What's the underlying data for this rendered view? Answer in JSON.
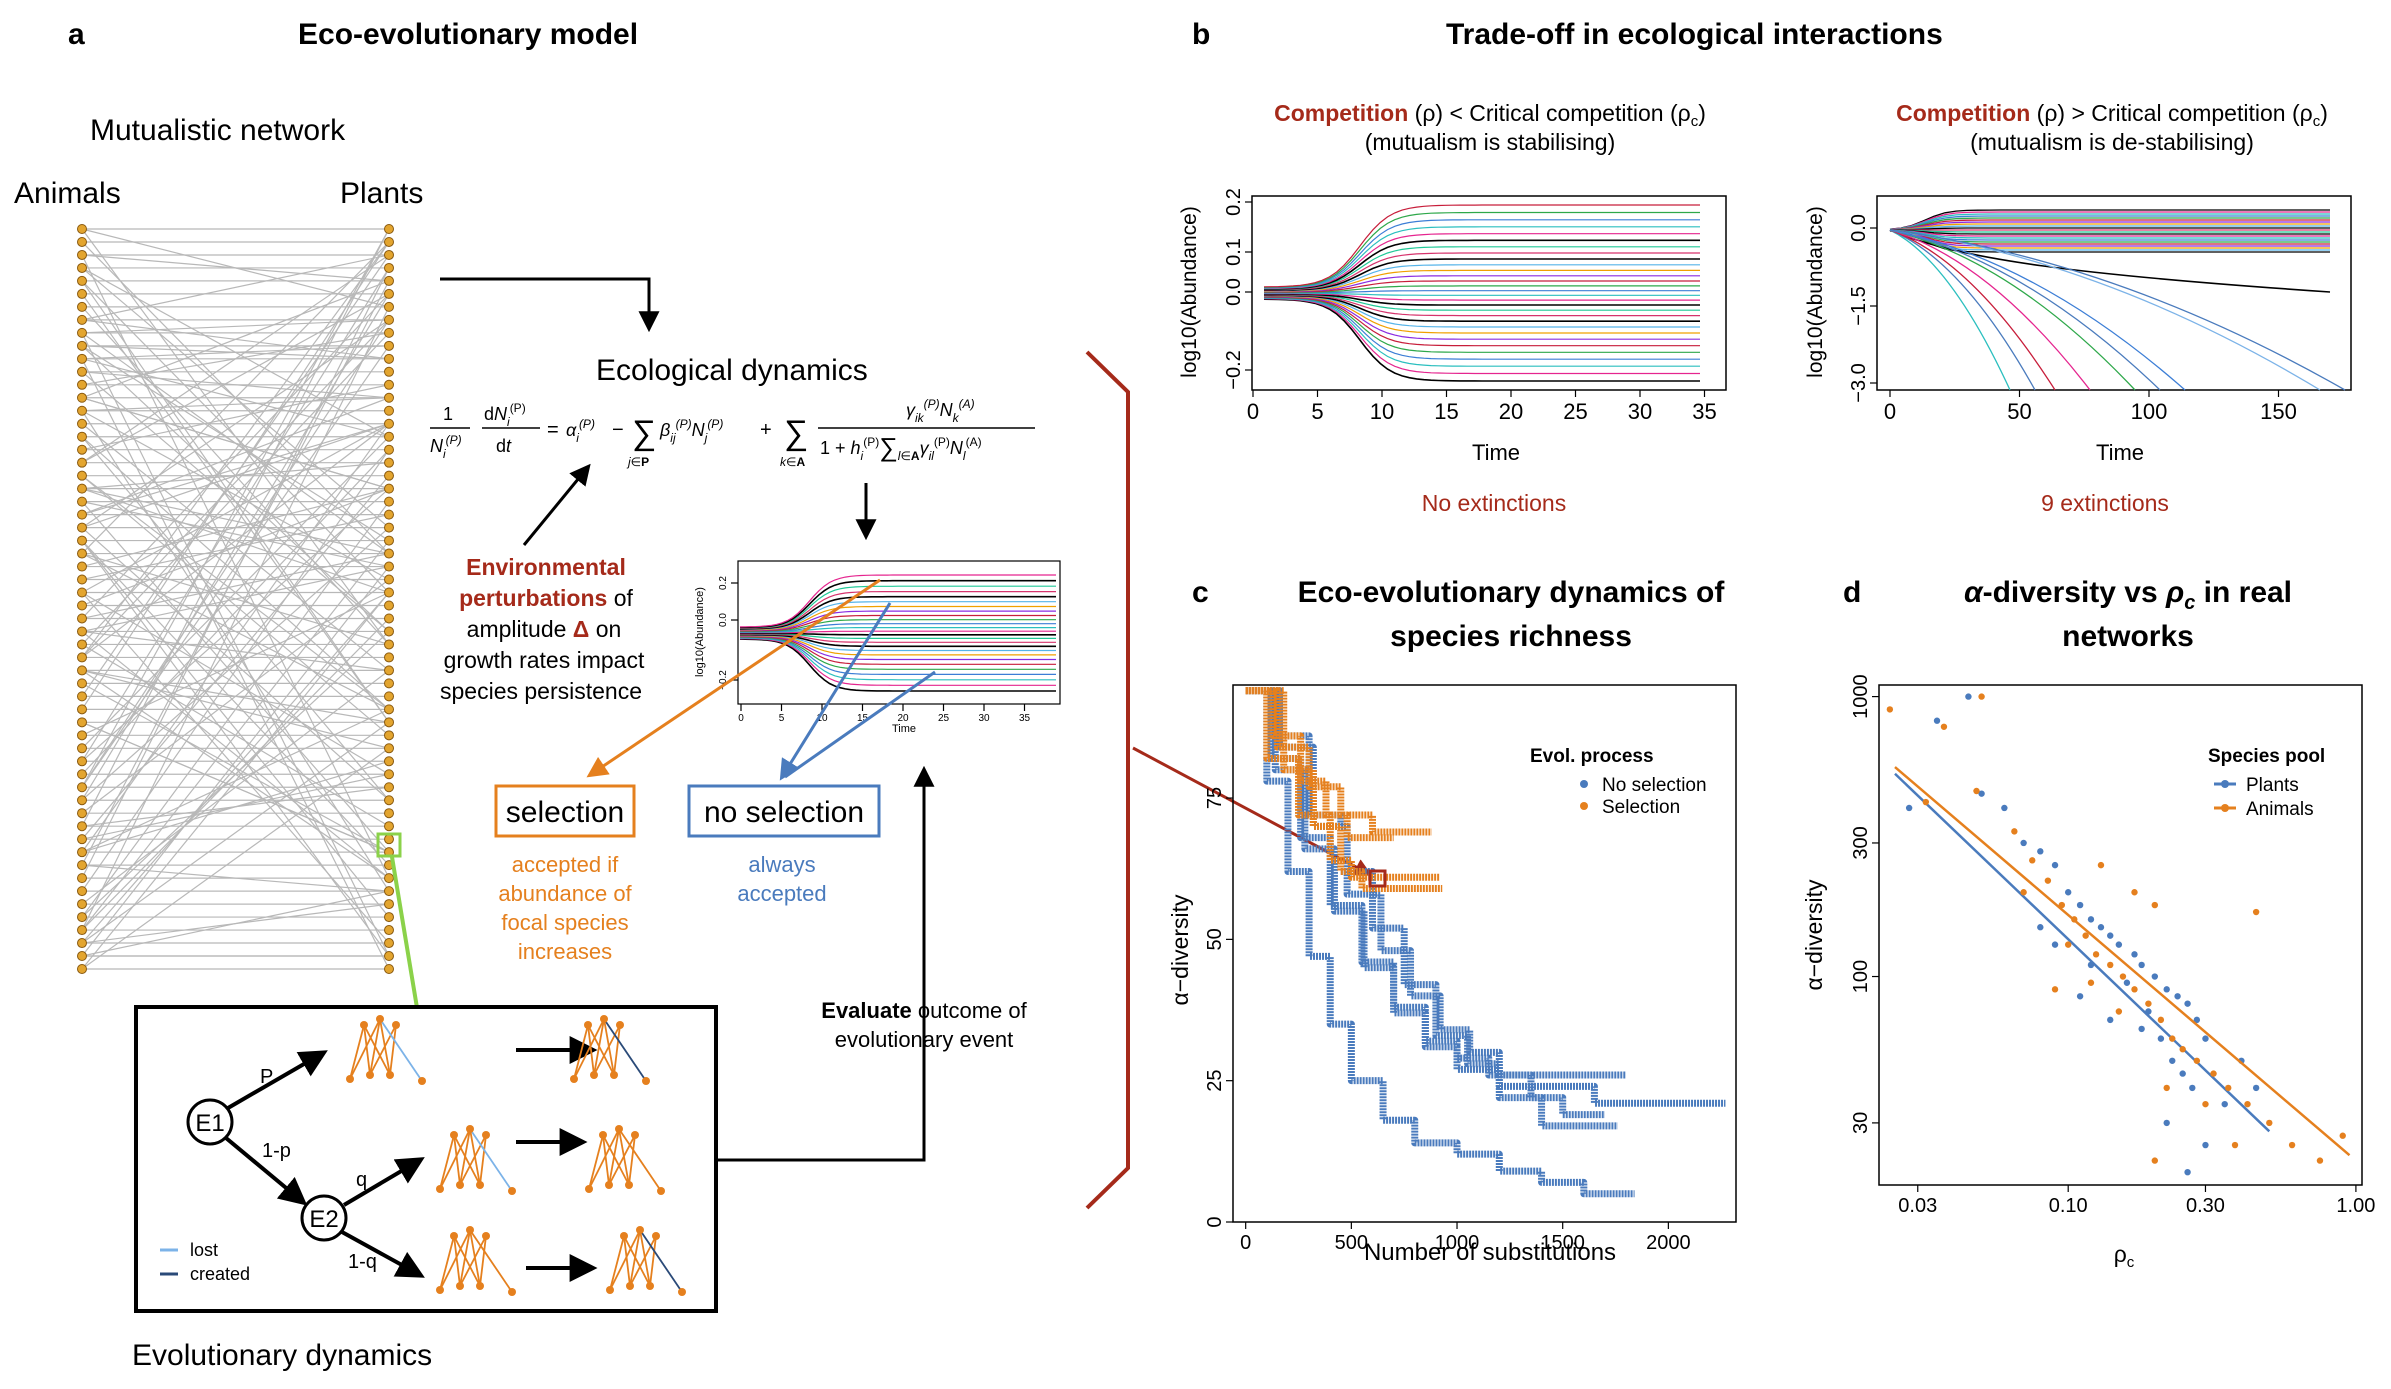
{
  "colors": {
    "node": "#e3a52f",
    "node_stroke": "#8a5a10",
    "edge_grey": "#b8b8b8",
    "dark_red": "#a52a1a",
    "orange": "#e5801e",
    "blue": "#4a7bbd",
    "light_blue": "#7cb3e8",
    "dark_blue": "#2a4a78",
    "green": "#8bd24a"
  },
  "panel_a": {
    "letter": "a",
    "title": "Eco-evolutionary model",
    "network_title": "Mutualistic network",
    "animals_label": "Animals",
    "plants_label": "Plants",
    "ecological_dynamics_label": "Ecological dynamics",
    "perturbation_text": {
      "line1_bold": "Environmental",
      "line2_bold": "perturbations",
      "line2_rest": " of",
      "line3_pre": "amplitude ",
      "line3_delta": "Δ",
      "line3_post": " on",
      "line4": "growth rates impact",
      "line5": "species persistence"
    },
    "selection_label": "selection",
    "no_selection_label": "no selection",
    "selection_desc": [
      "accepted if",
      "abundance of",
      "focal species",
      "increases"
    ],
    "no_selection_desc": [
      "always",
      "accepted"
    ],
    "evaluate_bold": "Evaluate",
    "evaluate_rest": " outcome of",
    "evaluate_line2": "evolutionary event",
    "inset_ylabel": "log10(Abundance)",
    "inset_xlabel": "Time",
    "inset_yticks": [
      "−0.2",
      "0.0",
      "0.2"
    ],
    "inset_xticks": [
      "0",
      "5",
      "10",
      "15",
      "20",
      "25",
      "30",
      "35"
    ],
    "evo_box": {
      "e1": "E1",
      "e2": "E2",
      "p": "P",
      "one_minus_p": "1-p",
      "q": "q",
      "one_minus_q": "1-q",
      "legend_lost": "lost",
      "legend_created": "created"
    },
    "evolutionary_dynamics_label": "Evolutionary dynamics"
  },
  "panel_b": {
    "letter": "b",
    "title": "Trade-off in ecological interactions",
    "left": {
      "head_bold": "Competition",
      "head_rest": " (ρ) < Critical competition (ρ",
      "head_sub": "c",
      "head_close": ")",
      "subhead": "(mutualism is stabilising)",
      "ylabel": "log10(Abundance)",
      "xlabel": "Time",
      "yticks": [
        "−0.2",
        "0.0",
        "0.1",
        "0.2"
      ],
      "xticks": [
        "0",
        "5",
        "10",
        "15",
        "20",
        "25",
        "30",
        "35"
      ],
      "outcome": "No extinctions"
    },
    "right": {
      "head_bold": "Competition",
      "head_rest": " (ρ) > Critical competition (ρ",
      "head_sub": "c",
      "head_close": ")",
      "subhead": "(mutualism is de-stabilising)",
      "ylabel": "log10(Abundance)",
      "xlabel": "Time",
      "yticks": [
        "0.0",
        "−1.5",
        "−3.0"
      ],
      "xticks": [
        "0",
        "50",
        "100",
        "150"
      ],
      "outcome": "9 extinctions"
    }
  },
  "panel_c": {
    "letter": "c",
    "title_line1": "Eco-evolutionary dynamics of",
    "title_line2": "species richness",
    "ylabel": "α−diversity",
    "xlabel": "Number of substitutions",
    "yticks": [
      "0",
      "25",
      "50",
      "75"
    ],
    "xticks": [
      "0",
      "500",
      "1000",
      "1500",
      "2000"
    ],
    "legend_title": "Evol. process",
    "legend": [
      "No selection",
      "Selection"
    ]
  },
  "panel_d": {
    "letter": "d",
    "title_line1_pre": "α",
    "title_line1_mid": "-diversity vs ",
    "title_line1_rho": "ρ",
    "title_line1_sub": "c",
    "title_line1_post": " in real",
    "title_line2": "networks",
    "ylabel": "α−diversity",
    "xlabel_main": "ρ",
    "xlabel_sub": "c",
    "yticks": [
      "30",
      "100",
      "300",
      "1000"
    ],
    "xticks": [
      "0.03",
      "0.10",
      "0.30",
      "1.00"
    ],
    "legend_title": "Species pool",
    "legend": [
      "Plants",
      "Animals"
    ]
  },
  "chart_data": [
    {
      "id": "panel_c",
      "type": "line",
      "xlabel": "Number of substitutions",
      "ylabel": "α−diversity",
      "xlim": [
        -60,
        2320
      ],
      "ylim": [
        0,
        95
      ],
      "series": [
        {
          "name": "No selection",
          "color": "#4a7bbd",
          "runs": [
            [
              [
                0,
                94
              ],
              [
                150,
                86
              ],
              [
                300,
                72
              ],
              [
                450,
                62
              ],
              [
                600,
                52
              ],
              [
                750,
                42
              ],
              [
                900,
                33
              ],
              [
                1050,
                28
              ],
              [
                1200,
                24
              ],
              [
                1350,
                24
              ],
              [
                1500,
                24
              ],
              [
                1650,
                21
              ],
              [
                1800,
                21
              ],
              [
                2000,
                21
              ],
              [
                2270,
                21
              ]
            ],
            [
              [
                0,
                94
              ],
              [
                120,
                82
              ],
              [
                260,
                68
              ],
              [
                400,
                56
              ],
              [
                550,
                46
              ],
              [
                700,
                38
              ],
              [
                850,
                32
              ],
              [
                1000,
                29
              ],
              [
                1150,
                26
              ],
              [
                1300,
                26
              ],
              [
                1550,
                26
              ],
              [
                1800,
                26
              ]
            ],
            [
              [
                0,
                94
              ],
              [
                140,
                80
              ],
              [
                280,
                66
              ],
              [
                420,
                55
              ],
              [
                560,
                45
              ],
              [
                700,
                37
              ],
              [
                850,
                31
              ],
              [
                1000,
                27
              ],
              [
                1200,
                22
              ],
              [
                1400,
                17
              ],
              [
                1600,
                17
              ],
              [
                1760,
                17
              ]
            ],
            [
              [
                0,
                94
              ],
              [
                160,
                84
              ],
              [
                320,
                70
              ],
              [
                480,
                58
              ],
              [
                640,
                48
              ],
              [
                780,
                40
              ],
              [
                920,
                34
              ],
              [
                1060,
                30
              ],
              [
                1200,
                26
              ],
              [
                1350,
                22
              ],
              [
                1500,
                19
              ],
              [
                1700,
                19
              ]
            ],
            [
              [
                0,
                94
              ],
              [
                100,
                78
              ],
              [
                200,
                62
              ],
              [
                300,
                47
              ],
              [
                400,
                35
              ],
              [
                500,
                25
              ],
              [
                650,
                18
              ],
              [
                800,
                14
              ],
              [
                1000,
                12
              ],
              [
                1200,
                9
              ],
              [
                1400,
                7
              ],
              [
                1600,
                5
              ],
              [
                1840,
                5
              ]
            ]
          ]
        },
        {
          "name": "Selection",
          "color": "#e5801e",
          "runs": [
            [
              [
                0,
                94
              ],
              [
                150,
                84
              ],
              [
                300,
                77
              ],
              [
                450,
                72
              ],
              [
                600,
                69
              ],
              [
                700,
                69
              ],
              [
                880,
                69
              ]
            ],
            [
              [
                0,
                94
              ],
              [
                100,
                82
              ],
              [
                250,
                72
              ],
              [
                400,
                64
              ],
              [
                500,
                61
              ],
              [
                700,
                61
              ],
              [
                920,
                61
              ]
            ],
            [
              [
                0,
                94
              ],
              [
                180,
                80
              ],
              [
                320,
                70
              ],
              [
                450,
                62
              ],
              [
                550,
                59
              ],
              [
                750,
                59
              ],
              [
                930,
                59
              ]
            ],
            [
              [
                0,
                94
              ],
              [
                130,
                86
              ],
              [
                260,
                78
              ],
              [
                380,
                72
              ],
              [
                480,
                68
              ],
              [
                580,
                68
              ],
              [
                700,
                68
              ]
            ]
          ]
        }
      ]
    },
    {
      "id": "panel_d",
      "type": "scatter",
      "xlabel": "ρc",
      "ylabel": "α−diversity",
      "x_scale": "log",
      "y_scale": "log",
      "xlim": [
        0.022,
        1.05
      ],
      "ylim": [
        18,
        1100
      ],
      "series": [
        {
          "name": "Plants",
          "color": "#4a7bbd",
          "points": [
            [
              0.045,
              1000
            ],
            [
              0.035,
              820
            ],
            [
              0.028,
              400
            ],
            [
              0.05,
              450
            ],
            [
              0.06,
              400
            ],
            [
              0.07,
              300
            ],
            [
              0.08,
              280
            ],
            [
              0.09,
              250
            ],
            [
              0.1,
              200
            ],
            [
              0.11,
              180
            ],
            [
              0.12,
              160
            ],
            [
              0.13,
              150
            ],
            [
              0.14,
              140
            ],
            [
              0.15,
              130
            ],
            [
              0.17,
              120
            ],
            [
              0.18,
              110
            ],
            [
              0.2,
              100
            ],
            [
              0.22,
              90
            ],
            [
              0.24,
              85
            ],
            [
              0.26,
              80
            ],
            [
              0.28,
              70
            ],
            [
              0.3,
              60
            ],
            [
              0.12,
              110
            ],
            [
              0.09,
              130
            ],
            [
              0.16,
              95
            ],
            [
              0.19,
              75
            ],
            [
              0.21,
              60
            ],
            [
              0.23,
              50
            ],
            [
              0.25,
              45
            ],
            [
              0.27,
              40
            ],
            [
              0.22,
              30
            ],
            [
              0.26,
              20
            ],
            [
              0.3,
              25
            ],
            [
              0.35,
              35
            ],
            [
              0.4,
              50
            ],
            [
              0.45,
              40
            ],
            [
              0.18,
              65
            ],
            [
              0.14,
              70
            ],
            [
              0.11,
              85
            ],
            [
              0.08,
              150
            ]
          ],
          "fit": [
            [
              0.025,
              530
            ],
            [
              0.5,
              28
            ]
          ]
        },
        {
          "name": "Animals",
          "color": "#e5801e",
          "points": [
            [
              0.05,
              1000
            ],
            [
              0.037,
              780
            ],
            [
              0.024,
              900
            ],
            [
              0.032,
              420
            ],
            [
              0.048,
              460
            ],
            [
              0.065,
              330
            ],
            [
              0.075,
              260
            ],
            [
              0.085,
              220
            ],
            [
              0.095,
              180
            ],
            [
              0.105,
              160
            ],
            [
              0.115,
              140
            ],
            [
              0.125,
              120
            ],
            [
              0.14,
              110
            ],
            [
              0.155,
              100
            ],
            [
              0.17,
              90
            ],
            [
              0.19,
              80
            ],
            [
              0.21,
              70
            ],
            [
              0.23,
              60
            ],
            [
              0.25,
              55
            ],
            [
              0.28,
              50
            ],
            [
              0.32,
              45
            ],
            [
              0.36,
              40
            ],
            [
              0.42,
              35
            ],
            [
              0.5,
              30
            ],
            [
              0.6,
              25
            ],
            [
              0.75,
              22
            ],
            [
              0.9,
              27
            ],
            [
              0.13,
              250
            ],
            [
              0.17,
              200
            ],
            [
              0.2,
              180
            ],
            [
              0.15,
              75
            ],
            [
              0.12,
              95
            ],
            [
              0.1,
              130
            ],
            [
              0.22,
              40
            ],
            [
              0.3,
              35
            ],
            [
              0.38,
              25
            ],
            [
              0.2,
              22
            ],
            [
              0.45,
              170
            ],
            [
              0.07,
              200
            ],
            [
              0.09,
              90
            ]
          ],
          "fit": [
            [
              0.025,
              560
            ],
            [
              0.95,
              23
            ]
          ]
        }
      ]
    }
  ]
}
